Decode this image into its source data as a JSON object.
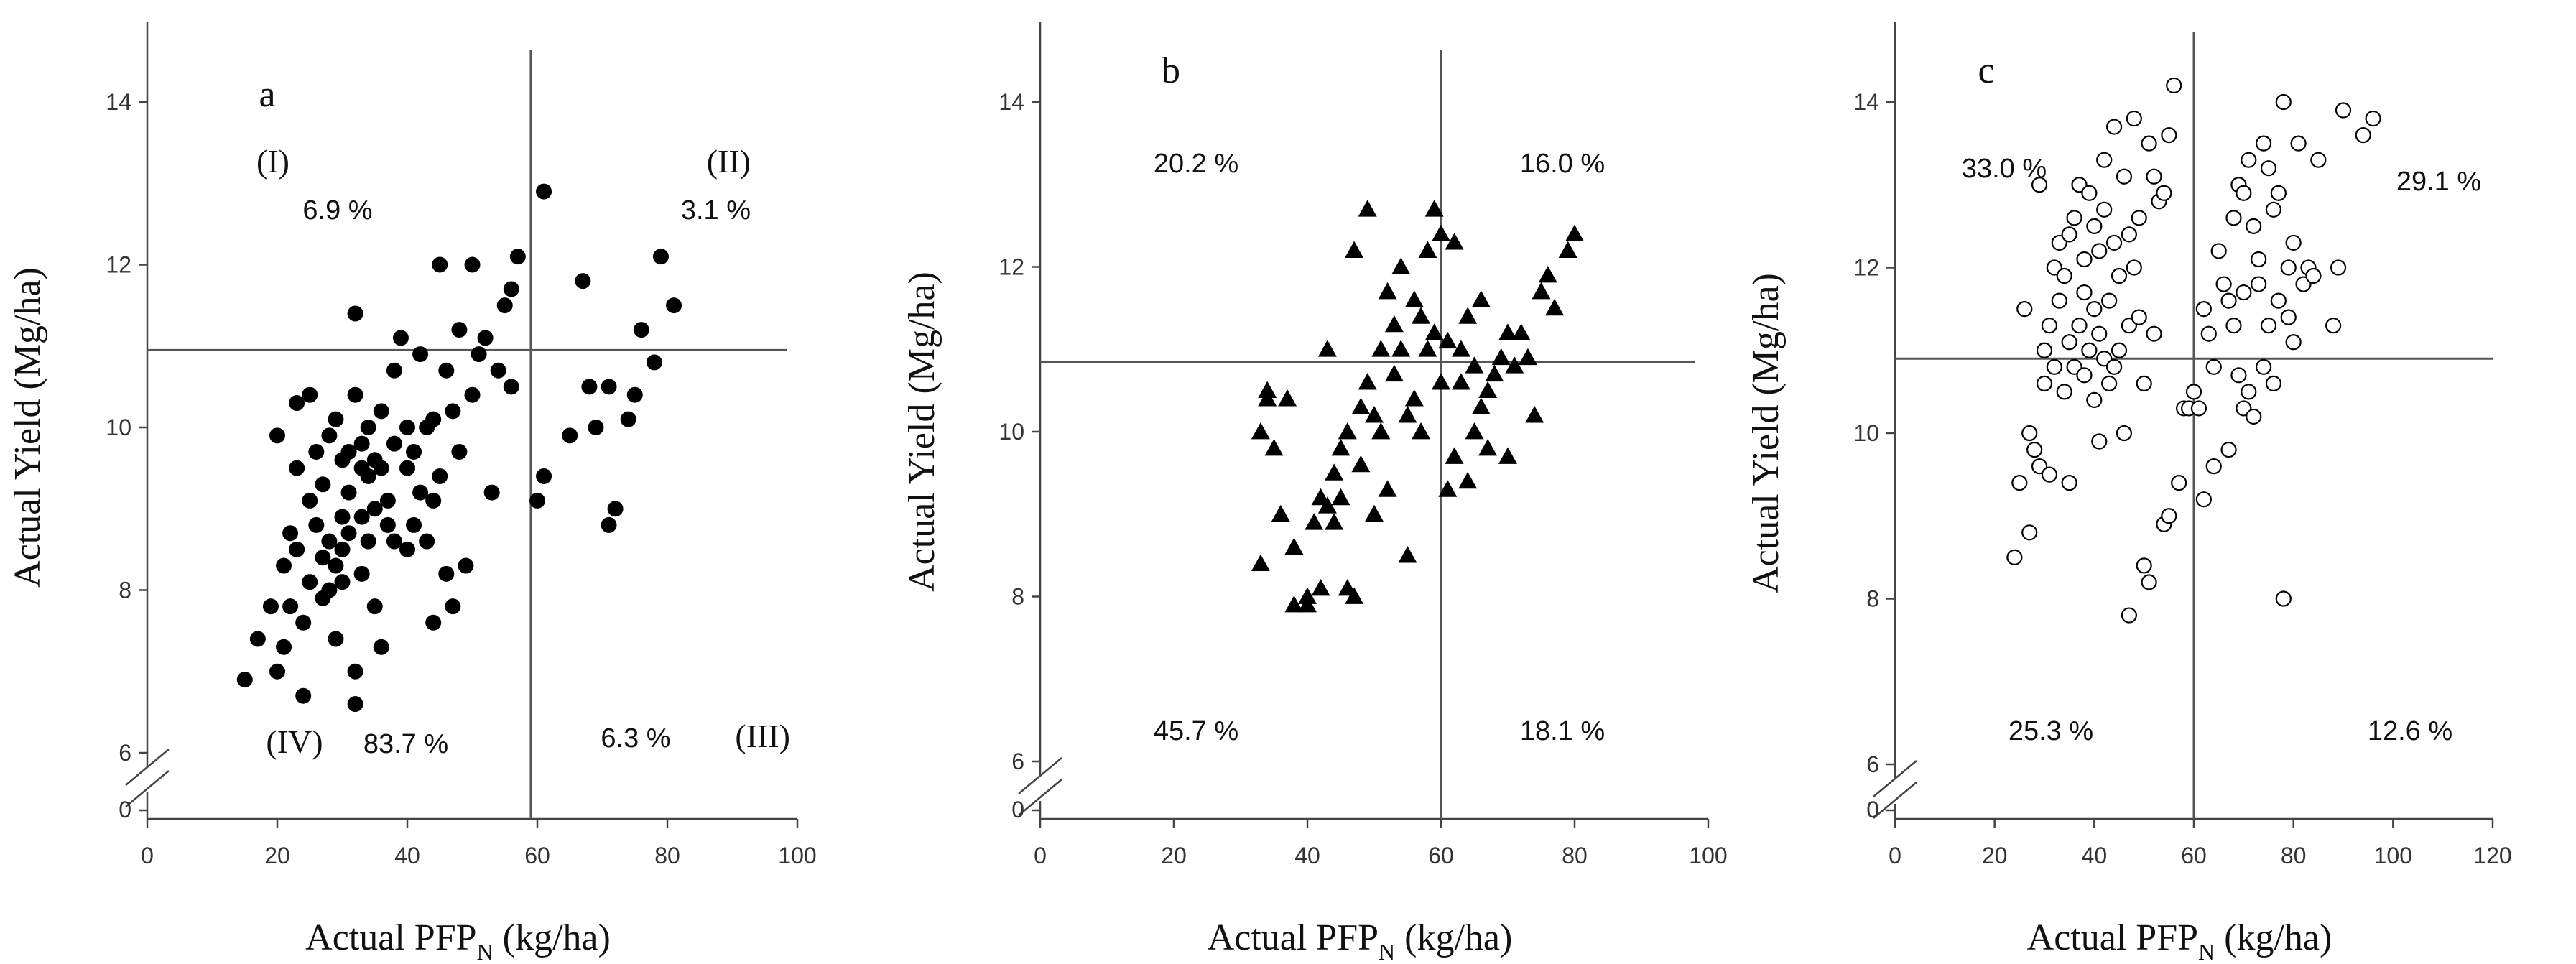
{
  "chart_data": [
    {
      "type": "scatter",
      "panel_label": "a",
      "marker": "filled-circle",
      "xlabel_main": "Actual PFP",
      "xlabel_sub": "N",
      "xlabel_unit": " (kg/ha)",
      "ylabel": "Actual Yield (Mg/ha)",
      "xlim": [
        0,
        100
      ],
      "ylim": [
        6,
        15
      ],
      "xticks": [
        0,
        20,
        40,
        60,
        80,
        100
      ],
      "yticks": [
        6,
        8,
        10,
        12,
        14
      ],
      "y_break_label": "0",
      "vline_x": 59,
      "hline_y": 10.95,
      "quadrants": {
        "top_left": {
          "roman": "(I)",
          "pct": "6.9 %"
        },
        "top_right": {
          "roman": "(II)",
          "pct": "3.1 %"
        },
        "bottom_right": {
          "roman": "(III)",
          "pct": "6.3 %"
        },
        "bottom_left": {
          "roman": "(IV)",
          "pct": "83.7 %"
        }
      },
      "points": [
        [
          15,
          6.9
        ],
        [
          17,
          7.4
        ],
        [
          19,
          7.8
        ],
        [
          20,
          7.0
        ],
        [
          20,
          9.9
        ],
        [
          21,
          8.3
        ],
        [
          21,
          7.3
        ],
        [
          22,
          7.8
        ],
        [
          22,
          8.7
        ],
        [
          23,
          10.3
        ],
        [
          23,
          9.5
        ],
        [
          23,
          8.5
        ],
        [
          24,
          7.6
        ],
        [
          24,
          6.7
        ],
        [
          25,
          9.1
        ],
        [
          25,
          8.1
        ],
        [
          25,
          10.4
        ],
        [
          26,
          9.7
        ],
        [
          26,
          8.8
        ],
        [
          27,
          7.9
        ],
        [
          27,
          8.4
        ],
        [
          27,
          9.3
        ],
        [
          28,
          8.0
        ],
        [
          28,
          8.6
        ],
        [
          28,
          9.9
        ],
        [
          29,
          10.1
        ],
        [
          29,
          8.3
        ],
        [
          29,
          7.4
        ],
        [
          30,
          8.9
        ],
        [
          30,
          8.5
        ],
        [
          30,
          9.6
        ],
        [
          30,
          8.1
        ],
        [
          31,
          8.7
        ],
        [
          31,
          9.2
        ],
        [
          31,
          9.7
        ],
        [
          32,
          11.4
        ],
        [
          32,
          10.4
        ],
        [
          32,
          7.0
        ],
        [
          32,
          6.6
        ],
        [
          33,
          9.5
        ],
        [
          33,
          8.9
        ],
        [
          33,
          8.2
        ],
        [
          33,
          9.8
        ],
        [
          34,
          9.4
        ],
        [
          34,
          10.0
        ],
        [
          34,
          8.6
        ],
        [
          35,
          9.0
        ],
        [
          35,
          9.6
        ],
        [
          35,
          7.8
        ],
        [
          36,
          7.3
        ],
        [
          36,
          9.5
        ],
        [
          36,
          10.2
        ],
        [
          37,
          8.8
        ],
        [
          37,
          9.1
        ],
        [
          38,
          10.7
        ],
        [
          38,
          8.6
        ],
        [
          38,
          9.8
        ],
        [
          39,
          11.1
        ],
        [
          40,
          9.5
        ],
        [
          40,
          10.0
        ],
        [
          40,
          8.5
        ],
        [
          41,
          9.7
        ],
        [
          41,
          8.8
        ],
        [
          42,
          10.9
        ],
        [
          42,
          9.2
        ],
        [
          43,
          10.0
        ],
        [
          43,
          8.6
        ],
        [
          44,
          9.1
        ],
        [
          44,
          7.6
        ],
        [
          44,
          10.1
        ],
        [
          45,
          12.0
        ],
        [
          45,
          9.4
        ],
        [
          46,
          10.7
        ],
        [
          46,
          8.2
        ],
        [
          47,
          7.8
        ],
        [
          47,
          10.2
        ],
        [
          48,
          9.7
        ],
        [
          48,
          11.2
        ],
        [
          49,
          8.3
        ],
        [
          50,
          12.0
        ],
        [
          50,
          10.4
        ],
        [
          51,
          10.9
        ],
        [
          52,
          11.1
        ],
        [
          53,
          9.2
        ],
        [
          54,
          10.7
        ],
        [
          55,
          11.5
        ],
        [
          56,
          11.7
        ],
        [
          56,
          10.5
        ],
        [
          57,
          12.1
        ],
        [
          61,
          12.9
        ],
        [
          61,
          9.4
        ],
        [
          60,
          9.1
        ],
        [
          65,
          9.9
        ],
        [
          67,
          11.8
        ],
        [
          68,
          10.5
        ],
        [
          69,
          10.0
        ],
        [
          71,
          10.5
        ],
        [
          71,
          8.8
        ],
        [
          72,
          9.0
        ],
        [
          74,
          10.1
        ],
        [
          75,
          10.4
        ],
        [
          76,
          11.2
        ],
        [
          78,
          10.8
        ],
        [
          79,
          12.1
        ],
        [
          81,
          11.5
        ]
      ]
    },
    {
      "type": "scatter",
      "panel_label": "b",
      "marker": "filled-triangle",
      "xlabel_main": "Actual PFP",
      "xlabel_sub": "N",
      "xlabel_unit": " (kg/ha)",
      "ylabel": "Actual Yield (Mg/ha)",
      "xlim": [
        0,
        100
      ],
      "ylim": [
        6,
        15
      ],
      "xticks": [
        0,
        20,
        40,
        60,
        80,
        100
      ],
      "yticks": [
        6,
        8,
        10,
        12,
        14
      ],
      "y_break_label": "0",
      "vline_x": 60,
      "hline_y": 10.85,
      "quadrants": {
        "top_left": {
          "pct": "20.2 %"
        },
        "top_right": {
          "pct": "16.0 %"
        },
        "bottom_left": {
          "pct": "45.7 %"
        },
        "bottom_right": {
          "pct": "18.1 %"
        }
      },
      "points": [
        [
          33,
          8.4
        ],
        [
          33,
          10.0
        ],
        [
          34,
          10.5
        ],
        [
          34,
          10.4
        ],
        [
          35,
          9.8
        ],
        [
          36,
          9.0
        ],
        [
          37,
          10.4
        ],
        [
          38,
          7.9
        ],
        [
          38,
          8.6
        ],
        [
          40,
          8.0
        ],
        [
          40,
          7.9
        ],
        [
          41,
          8.9
        ],
        [
          42,
          8.1
        ],
        [
          42,
          9.2
        ],
        [
          43,
          9.1
        ],
        [
          43,
          11.0
        ],
        [
          44,
          9.5
        ],
        [
          44,
          8.9
        ],
        [
          45,
          9.8
        ],
        [
          45,
          9.2
        ],
        [
          46,
          8.1
        ],
        [
          46,
          10.0
        ],
        [
          47,
          12.2
        ],
        [
          47,
          8.0
        ],
        [
          48,
          10.3
        ],
        [
          48,
          9.6
        ],
        [
          49,
          12.7
        ],
        [
          49,
          10.6
        ],
        [
          50,
          10.2
        ],
        [
          50,
          9.0
        ],
        [
          51,
          11.0
        ],
        [
          51,
          10.0
        ],
        [
          52,
          11.7
        ],
        [
          52,
          9.3
        ],
        [
          53,
          11.3
        ],
        [
          53,
          10.7
        ],
        [
          54,
          11.0
        ],
        [
          54,
          12.0
        ],
        [
          55,
          8.5
        ],
        [
          55,
          10.2
        ],
        [
          56,
          11.6
        ],
        [
          56,
          10.4
        ],
        [
          57,
          11.4
        ],
        [
          57,
          10.0
        ],
        [
          58,
          12.2
        ],
        [
          58,
          11.0
        ],
        [
          59,
          12.7
        ],
        [
          59,
          11.2
        ],
        [
          60,
          12.4
        ],
        [
          60,
          10.6
        ],
        [
          61,
          9.3
        ],
        [
          61,
          11.1
        ],
        [
          62,
          12.3
        ],
        [
          62,
          9.7
        ],
        [
          63,
          10.6
        ],
        [
          63,
          11.0
        ],
        [
          64,
          11.4
        ],
        [
          64,
          9.4
        ],
        [
          65,
          10.0
        ],
        [
          65,
          10.8
        ],
        [
          66,
          10.3
        ],
        [
          66,
          11.6
        ],
        [
          67,
          10.5
        ],
        [
          67,
          9.8
        ],
        [
          68,
          10.7
        ],
        [
          69,
          10.9
        ],
        [
          70,
          11.2
        ],
        [
          70,
          9.7
        ],
        [
          71,
          10.8
        ],
        [
          72,
          11.2
        ],
        [
          73,
          10.9
        ],
        [
          74,
          10.2
        ],
        [
          75,
          11.7
        ],
        [
          76,
          11.9
        ],
        [
          77,
          11.5
        ],
        [
          79,
          12.2
        ],
        [
          80,
          12.4
        ]
      ]
    },
    {
      "type": "scatter",
      "panel_label": "c",
      "marker": "open-circle",
      "xlabel_main": "Actual PFP",
      "xlabel_sub": "N",
      "xlabel_unit": " (kg/ha)",
      "ylabel": "Actual Yield (Mg/ha)",
      "xlim": [
        0,
        120
      ],
      "ylim": [
        6,
        15
      ],
      "xticks": [
        0,
        20,
        40,
        60,
        80,
        100,
        120
      ],
      "yticks": [
        6,
        8,
        10,
        12,
        14
      ],
      "y_break_label": "0",
      "vline_x": 60,
      "hline_y": 10.9,
      "quadrants": {
        "top_left": {
          "pct": "33.0 %"
        },
        "top_right": {
          "pct": "29.1 %"
        },
        "bottom_left": {
          "pct": "25.3 %"
        },
        "bottom_right": {
          "pct": "12.6 %"
        }
      },
      "points": [
        [
          24,
          8.5
        ],
        [
          25,
          9.4
        ],
        [
          26,
          11.5
        ],
        [
          27,
          10.0
        ],
        [
          27,
          8.8
        ],
        [
          28,
          9.8
        ],
        [
          29,
          9.6
        ],
        [
          29,
          13.0
        ],
        [
          30,
          11.0
        ],
        [
          30,
          10.6
        ],
        [
          31,
          11.3
        ],
        [
          31,
          9.5
        ],
        [
          32,
          12.0
        ],
        [
          32,
          10.8
        ],
        [
          33,
          11.6
        ],
        [
          33,
          12.3
        ],
        [
          34,
          10.5
        ],
        [
          34,
          11.9
        ],
        [
          35,
          12.4
        ],
        [
          35,
          11.1
        ],
        [
          35,
          9.4
        ],
        [
          36,
          10.8
        ],
        [
          36,
          12.6
        ],
        [
          37,
          11.3
        ],
        [
          37,
          13.0
        ],
        [
          38,
          10.7
        ],
        [
          38,
          12.1
        ],
        [
          38,
          11.7
        ],
        [
          39,
          12.9
        ],
        [
          39,
          11.0
        ],
        [
          40,
          11.5
        ],
        [
          40,
          12.5
        ],
        [
          40,
          10.4
        ],
        [
          41,
          11.2
        ],
        [
          41,
          9.9
        ],
        [
          41,
          12.2
        ],
        [
          42,
          10.9
        ],
        [
          42,
          12.7
        ],
        [
          42,
          13.3
        ],
        [
          43,
          11.6
        ],
        [
          43,
          10.6
        ],
        [
          44,
          13.7
        ],
        [
          44,
          12.3
        ],
        [
          44,
          10.8
        ],
        [
          45,
          11.9
        ],
        [
          45,
          11.0
        ],
        [
          46,
          13.1
        ],
        [
          46,
          10.0
        ],
        [
          47,
          7.8
        ],
        [
          47,
          12.4
        ],
        [
          47,
          11.3
        ],
        [
          48,
          13.8
        ],
        [
          48,
          12.0
        ],
        [
          49,
          11.4
        ],
        [
          49,
          12.6
        ],
        [
          50,
          10.6
        ],
        [
          50,
          8.4
        ],
        [
          51,
          8.2
        ],
        [
          51,
          13.5
        ],
        [
          52,
          13.1
        ],
        [
          52,
          11.2
        ],
        [
          53,
          12.8
        ],
        [
          54,
          8.9
        ],
        [
          54,
          12.9
        ],
        [
          55,
          9.0
        ],
        [
          55,
          13.6
        ],
        [
          56,
          14.2
        ],
        [
          57,
          9.4
        ],
        [
          58,
          10.3
        ],
        [
          59,
          10.3
        ],
        [
          60,
          10.5
        ],
        [
          61,
          10.3
        ],
        [
          62,
          11.5
        ],
        [
          62,
          9.2
        ],
        [
          63,
          11.2
        ],
        [
          64,
          9.6
        ],
        [
          64,
          10.8
        ],
        [
          65,
          12.2
        ],
        [
          66,
          11.8
        ],
        [
          67,
          9.8
        ],
        [
          67,
          11.6
        ],
        [
          68,
          11.3
        ],
        [
          68,
          12.6
        ],
        [
          69,
          10.7
        ],
        [
          69,
          13.0
        ],
        [
          70,
          10.3
        ],
        [
          70,
          11.7
        ],
        [
          70,
          12.9
        ],
        [
          71,
          10.5
        ],
        [
          71,
          13.3
        ],
        [
          72,
          10.2
        ],
        [
          72,
          12.5
        ],
        [
          73,
          11.8
        ],
        [
          73,
          12.1
        ],
        [
          74,
          13.5
        ],
        [
          74,
          10.8
        ],
        [
          75,
          11.3
        ],
        [
          75,
          13.2
        ],
        [
          76,
          12.7
        ],
        [
          76,
          10.6
        ],
        [
          77,
          12.9
        ],
        [
          77,
          11.6
        ],
        [
          78,
          14.0
        ],
        [
          78,
          8.0
        ],
        [
          79,
          12.0
        ],
        [
          79,
          11.4
        ],
        [
          80,
          12.3
        ],
        [
          80,
          11.1
        ],
        [
          81,
          13.5
        ],
        [
          82,
          11.8
        ],
        [
          83,
          12.0
        ],
        [
          84,
          11.9
        ],
        [
          85,
          13.3
        ],
        [
          88,
          11.3
        ],
        [
          89,
          12.0
        ],
        [
          90,
          13.9
        ],
        [
          94,
          13.6
        ],
        [
          96,
          13.8
        ]
      ]
    }
  ]
}
